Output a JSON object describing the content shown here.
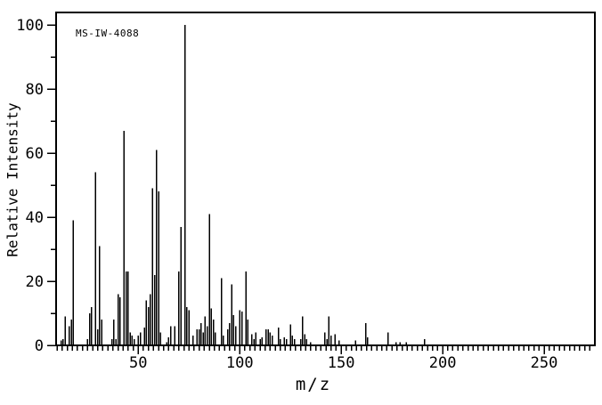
{
  "chart_data": {
    "type": "bar",
    "subtype": "mass-spectrum",
    "annotation": "MS-IW-4088",
    "xlabel": "m/z",
    "ylabel": "Relative Intensity",
    "xlim": [
      9.5,
      275
    ],
    "ylim": [
      0,
      100
    ],
    "x_major_ticks": [
      50,
      100,
      150,
      200,
      250
    ],
    "x_minor_tick_step": 2.5,
    "x_minor_tick_start": 10,
    "x_minor_tick_end": 272.5,
    "y_major_ticks": [
      0,
      20,
      40,
      60,
      80,
      100
    ],
    "y_minor_ticks": [
      10,
      30,
      50,
      70,
      90
    ],
    "grid": false,
    "legend": false,
    "background_color": "#ffffff",
    "line_color": "#000000",
    "peaks": [
      [
        12,
        1.5
      ],
      [
        13,
        2
      ],
      [
        14,
        9
      ],
      [
        16,
        6
      ],
      [
        17,
        8
      ],
      [
        18,
        39
      ],
      [
        25,
        2
      ],
      [
        26,
        10
      ],
      [
        27,
        12
      ],
      [
        29,
        54
      ],
      [
        30,
        5
      ],
      [
        31,
        31
      ],
      [
        32,
        8
      ],
      [
        37,
        2
      ],
      [
        38,
        8
      ],
      [
        39,
        2
      ],
      [
        40,
        16
      ],
      [
        41,
        15
      ],
      [
        43,
        67
      ],
      [
        44,
        23
      ],
      [
        45,
        23
      ],
      [
        46,
        4
      ],
      [
        47,
        3
      ],
      [
        48,
        2
      ],
      [
        50,
        3
      ],
      [
        51,
        4
      ],
      [
        53,
        5.5
      ],
      [
        54,
        14
      ],
      [
        55,
        12
      ],
      [
        56,
        16
      ],
      [
        57,
        49
      ],
      [
        58,
        22
      ],
      [
        59,
        61
      ],
      [
        60,
        48
      ],
      [
        61,
        4
      ],
      [
        64,
        1
      ],
      [
        65,
        2.5
      ],
      [
        66,
        6
      ],
      [
        68,
        6
      ],
      [
        70,
        23
      ],
      [
        71,
        37
      ],
      [
        73,
        100
      ],
      [
        74,
        12
      ],
      [
        75,
        11
      ],
      [
        77,
        3
      ],
      [
        79,
        5
      ],
      [
        80,
        5
      ],
      [
        81,
        7
      ],
      [
        82,
        4
      ],
      [
        83,
        9
      ],
      [
        84,
        6
      ],
      [
        85,
        41
      ],
      [
        86,
        11.5
      ],
      [
        87,
        8
      ],
      [
        88,
        4
      ],
      [
        91,
        21
      ],
      [
        92,
        3
      ],
      [
        94,
        5
      ],
      [
        95,
        7
      ],
      [
        96,
        19
      ],
      [
        97,
        9.5
      ],
      [
        98,
        6
      ],
      [
        100,
        11
      ],
      [
        101,
        10.5
      ],
      [
        103,
        23
      ],
      [
        104,
        8
      ],
      [
        106,
        3.5
      ],
      [
        107,
        2
      ],
      [
        108,
        4
      ],
      [
        110,
        2
      ],
      [
        111,
        2.5
      ],
      [
        113,
        5
      ],
      [
        114,
        5
      ],
      [
        115,
        4
      ],
      [
        116,
        3
      ],
      [
        119,
        5.5
      ],
      [
        120,
        2
      ],
      [
        122,
        2.5
      ],
      [
        123,
        2
      ],
      [
        125,
        6.5
      ],
      [
        126,
        3
      ],
      [
        127,
        2
      ],
      [
        130,
        2
      ],
      [
        131,
        9
      ],
      [
        132,
        3.5
      ],
      [
        133,
        2
      ],
      [
        135,
        1
      ],
      [
        142,
        4
      ],
      [
        143,
        2
      ],
      [
        144,
        9
      ],
      [
        145,
        3
      ],
      [
        147,
        3.5
      ],
      [
        149,
        1.5
      ],
      [
        157,
        1.5
      ],
      [
        162,
        7
      ],
      [
        163,
        2.5
      ],
      [
        173,
        4
      ],
      [
        177,
        1
      ],
      [
        179,
        1
      ],
      [
        182,
        1
      ],
      [
        191,
        2
      ]
    ]
  }
}
